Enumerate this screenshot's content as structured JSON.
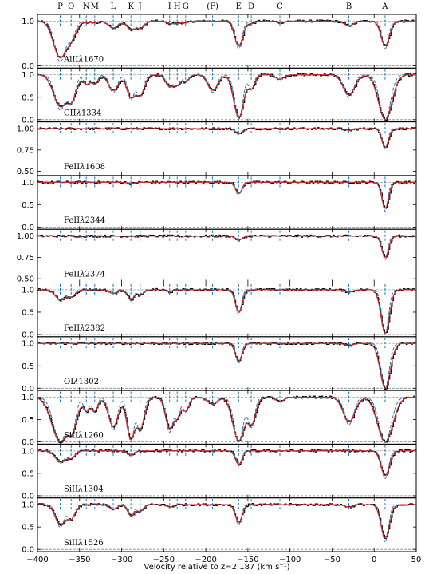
{
  "chart_data": {
    "type": "line",
    "xlabel": "Velocity relative to z=2.187 (km s⁻¹)",
    "xlim": [
      -400,
      50
    ],
    "xticks": [
      -400,
      -350,
      -300,
      -250,
      -200,
      -150,
      -100,
      -50,
      0,
      50
    ],
    "xtick_labels": [
      "−400",
      "−350",
      "−300",
      "−250",
      "−200",
      "−150",
      "−100",
      "−50",
      "0",
      "50"
    ],
    "colors": {
      "data": "#000000",
      "model": "#d62728",
      "components": "#1f77b4",
      "zero": "#888888"
    },
    "components": [
      {
        "label": "P",
        "v": -373
      },
      {
        "label": "O",
        "v": -360
      },
      {
        "label": "N",
        "v": -342
      },
      {
        "label": "M",
        "v": -332
      },
      {
        "label": "L",
        "v": -310
      },
      {
        "label": "K",
        "v": -289
      },
      {
        "label": "J",
        "v": -278
      },
      {
        "label": "I",
        "v": -243
      },
      {
        "label": "H",
        "v": -234
      },
      {
        "label": "G",
        "v": -224
      },
      {
        "label": "(F)",
        "v": -192
      },
      {
        "label": "E",
        "v": -161
      },
      {
        "label": "D",
        "v": -146
      },
      {
        "label": "C",
        "v": -112
      },
      {
        "label": "B",
        "v": -30
      },
      {
        "label": "A",
        "v": 13
      }
    ],
    "panels": [
      {
        "ion": "AlII",
        "wave": "1670",
        "ylim": [
          -0.05,
          1.15
        ],
        "yticks": [
          0.0,
          1.0
        ],
        "ytick_labels": [
          "0.0",
          "1.0"
        ],
        "absorption": [
          {
            "v": -373,
            "depth": 0.82,
            "width": 8
          },
          {
            "v": -360,
            "depth": 0.35,
            "width": 6
          },
          {
            "v": -342,
            "depth": 0.03,
            "width": 4
          },
          {
            "v": -332,
            "depth": 0.04,
            "width": 4
          },
          {
            "v": -310,
            "depth": 0.15,
            "width": 6
          },
          {
            "v": -289,
            "depth": 0.18,
            "width": 5
          },
          {
            "v": -278,
            "depth": 0.15,
            "width": 5
          },
          {
            "v": -243,
            "depth": 0.05,
            "width": 5
          },
          {
            "v": -234,
            "depth": 0.04,
            "width": 4
          },
          {
            "v": -224,
            "depth": 0.04,
            "width": 4
          },
          {
            "v": -161,
            "depth": 0.55,
            "width": 5
          },
          {
            "v": -146,
            "depth": 0.05,
            "width": 4
          },
          {
            "v": -112,
            "depth": 0.03,
            "width": 5
          },
          {
            "v": -30,
            "depth": 0.1,
            "width": 6
          },
          {
            "v": 13,
            "depth": 0.55,
            "width": 5
          }
        ]
      },
      {
        "ion": "CII",
        "wave": "1334",
        "ylim": [
          -0.05,
          1.15
        ],
        "yticks": [
          0.0,
          0.5,
          1.0
        ],
        "ytick_labels": [
          "0.0",
          "0.5",
          "1.0"
        ],
        "absorption": [
          {
            "v": -373,
            "depth": 0.7,
            "width": 8
          },
          {
            "v": -360,
            "depth": 0.55,
            "width": 6
          },
          {
            "v": -342,
            "depth": 0.2,
            "width": 4
          },
          {
            "v": -332,
            "depth": 0.2,
            "width": 4
          },
          {
            "v": -310,
            "depth": 0.35,
            "width": 6
          },
          {
            "v": -289,
            "depth": 0.5,
            "width": 5
          },
          {
            "v": -278,
            "depth": 0.45,
            "width": 5
          },
          {
            "v": -243,
            "depth": 0.25,
            "width": 5
          },
          {
            "v": -234,
            "depth": 0.2,
            "width": 4
          },
          {
            "v": -224,
            "depth": 0.15,
            "width": 4
          },
          {
            "v": -192,
            "depth": 0.35,
            "width": 6
          },
          {
            "v": -161,
            "depth": 0.95,
            "width": 6
          },
          {
            "v": -146,
            "depth": 0.3,
            "width": 4
          },
          {
            "v": -112,
            "depth": 0.1,
            "width": 5
          },
          {
            "v": -30,
            "depth": 0.45,
            "width": 7
          },
          {
            "v": 13,
            "depth": 1.0,
            "width": 8
          }
        ]
      },
      {
        "ion": "FeII",
        "wave": "1608",
        "ylim": [
          0.45,
          1.08
        ],
        "yticks": [
          0.5,
          0.75,
          1.0
        ],
        "ytick_labels": [
          "0.50",
          "0.75",
          "1.00"
        ],
        "absorption": [
          {
            "v": -161,
            "depth": 0.06,
            "width": 4
          },
          {
            "v": -30,
            "depth": 0.02,
            "width": 5
          },
          {
            "v": 13,
            "depth": 0.22,
            "width": 4
          }
        ]
      },
      {
        "ion": "FeII",
        "wave": "2344",
        "ylim": [
          -0.05,
          1.15
        ],
        "yticks": [
          0.0,
          0.5,
          1.0
        ],
        "ytick_labels": [
          "0.0",
          "0.5",
          "1.0"
        ],
        "absorption": [
          {
            "v": -289,
            "depth": 0.03,
            "width": 4
          },
          {
            "v": -161,
            "depth": 0.25,
            "width": 4
          },
          {
            "v": 13,
            "depth": 0.58,
            "width": 4
          }
        ]
      },
      {
        "ion": "FeII",
        "wave": "2374",
        "ylim": [
          0.45,
          1.08
        ],
        "yticks": [
          0.5,
          0.75,
          1.0
        ],
        "ytick_labels": [
          "0.50",
          "0.75",
          "1.00"
        ],
        "absorption": [
          {
            "v": -161,
            "depth": 0.05,
            "width": 4
          },
          {
            "v": 13,
            "depth": 0.25,
            "width": 4
          }
        ]
      },
      {
        "ion": "FeII",
        "wave": "2382",
        "ylim": [
          -0.05,
          1.15
        ],
        "yticks": [
          0.0,
          0.5,
          1.0
        ],
        "ytick_labels": [
          "0.0",
          "0.5",
          "1.0"
        ],
        "absorption": [
          {
            "v": -373,
            "depth": 0.22,
            "width": 6
          },
          {
            "v": -360,
            "depth": 0.15,
            "width": 5
          },
          {
            "v": -310,
            "depth": 0.08,
            "width": 5
          },
          {
            "v": -289,
            "depth": 0.22,
            "width": 4
          },
          {
            "v": -278,
            "depth": 0.12,
            "width": 4
          },
          {
            "v": -243,
            "depth": 0.05,
            "width": 4
          },
          {
            "v": -161,
            "depth": 0.5,
            "width": 4
          },
          {
            "v": -30,
            "depth": 0.05,
            "width": 5
          },
          {
            "v": 13,
            "depth": 0.97,
            "width": 5
          }
        ]
      },
      {
        "ion": "OI",
        "wave": "1302",
        "ylim": [
          -0.05,
          1.15
        ],
        "yticks": [
          0.0,
          0.5,
          1.0
        ],
        "ytick_labels": [
          "0.0",
          "0.5",
          "1.0"
        ],
        "absorption": [
          {
            "v": -161,
            "depth": 0.4,
            "width": 4
          },
          {
            "v": -30,
            "depth": 0.05,
            "width": 5
          },
          {
            "v": 13,
            "depth": 1.0,
            "width": 6
          }
        ]
      },
      {
        "ion": "SiII",
        "wave": "1260",
        "ylim": [
          -0.05,
          1.15
        ],
        "yticks": [
          0.0,
          0.5,
          1.0
        ],
        "ytick_labels": [
          "0.0",
          "0.5",
          "1.0"
        ],
        "absorption": [
          {
            "v": -373,
            "depth": 1.0,
            "width": 10
          },
          {
            "v": -360,
            "depth": 0.75,
            "width": 6
          },
          {
            "v": -342,
            "depth": 0.3,
            "width": 4
          },
          {
            "v": -332,
            "depth": 0.3,
            "width": 4
          },
          {
            "v": -310,
            "depth": 0.65,
            "width": 6
          },
          {
            "v": -289,
            "depth": 0.95,
            "width": 5
          },
          {
            "v": -278,
            "depth": 0.7,
            "width": 5
          },
          {
            "v": -243,
            "depth": 0.7,
            "width": 5
          },
          {
            "v": -234,
            "depth": 0.4,
            "width": 4
          },
          {
            "v": -224,
            "depth": 0.3,
            "width": 4
          },
          {
            "v": -192,
            "depth": 0.15,
            "width": 6
          },
          {
            "v": -161,
            "depth": 0.98,
            "width": 7
          },
          {
            "v": -146,
            "depth": 0.6,
            "width": 5
          },
          {
            "v": -112,
            "depth": 0.1,
            "width": 5
          },
          {
            "v": -30,
            "depth": 0.55,
            "width": 7
          },
          {
            "v": 13,
            "depth": 1.0,
            "width": 9
          }
        ]
      },
      {
        "ion": "SiII",
        "wave": "1304",
        "ylim": [
          -0.05,
          1.15
        ],
        "yticks": [
          0.0,
          0.5,
          1.0
        ],
        "ytick_labels": [
          "0.0",
          "0.5",
          "1.0"
        ],
        "absorption": [
          {
            "v": -373,
            "depth": 0.25,
            "width": 6
          },
          {
            "v": -360,
            "depth": 0.15,
            "width": 5
          },
          {
            "v": -289,
            "depth": 0.1,
            "width": 4
          },
          {
            "v": -161,
            "depth": 0.3,
            "width": 4
          },
          {
            "v": 13,
            "depth": 0.55,
            "width": 5
          }
        ]
      },
      {
        "ion": "SiII",
        "wave": "1526",
        "ylim": [
          -0.05,
          1.15
        ],
        "yticks": [
          0.0,
          0.5,
          1.0
        ],
        "ytick_labels": [
          "0.0",
          "0.5",
          "1.0"
        ],
        "absorption": [
          {
            "v": -373,
            "depth": 0.45,
            "width": 6
          },
          {
            "v": -360,
            "depth": 0.3,
            "width": 5
          },
          {
            "v": -310,
            "depth": 0.1,
            "width": 5
          },
          {
            "v": -289,
            "depth": 0.25,
            "width": 4
          },
          {
            "v": -278,
            "depth": 0.15,
            "width": 4
          },
          {
            "v": -243,
            "depth": 0.05,
            "width": 4
          },
          {
            "v": -161,
            "depth": 0.4,
            "width": 4
          },
          {
            "v": -30,
            "depth": 0.05,
            "width": 5
          },
          {
            "v": 13,
            "depth": 0.75,
            "width": 5
          }
        ]
      }
    ]
  }
}
